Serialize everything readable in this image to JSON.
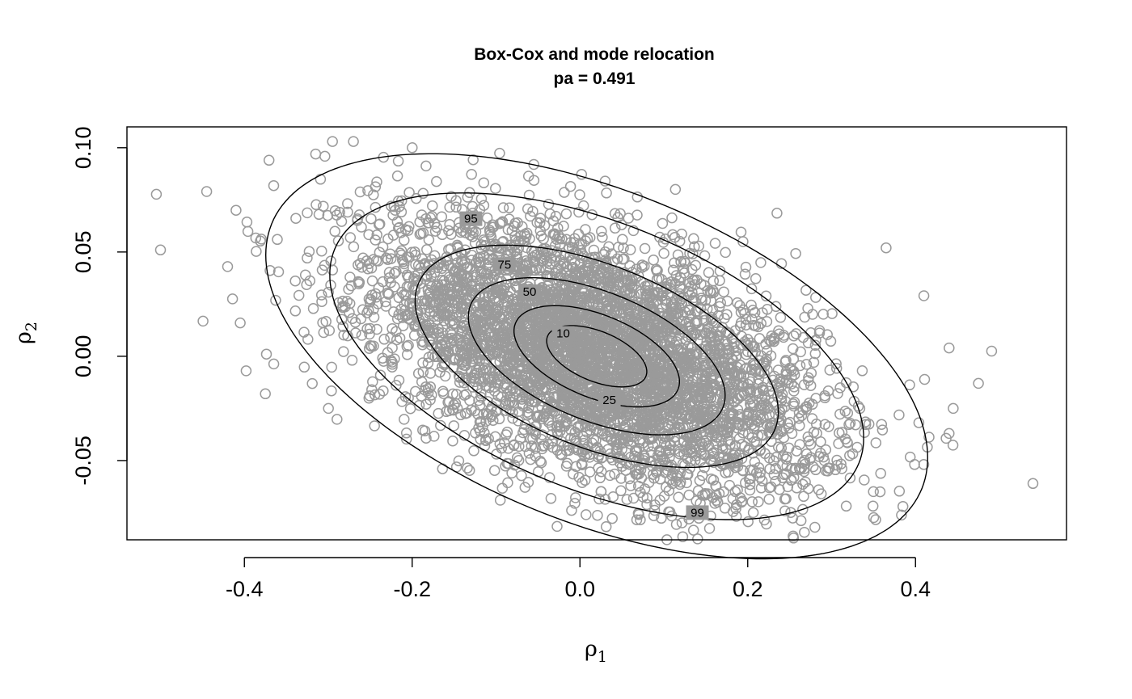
{
  "chart_data": {
    "type": "scatter",
    "title": "Box-Cox and mode relocation",
    "subtitle": "pa =  0.491",
    "xlabel": {
      "base": "ρ",
      "sub": "1"
    },
    "ylabel": {
      "base": "ρ",
      "sub": "2"
    },
    "xlim": [
      -0.54,
      0.58
    ],
    "ylim": [
      -0.088,
      0.11
    ],
    "x_ticks": [
      -0.4,
      -0.2,
      0.0,
      0.2,
      0.4
    ],
    "x_tick_labels": [
      "-0.4",
      "-0.2",
      "0.0",
      "0.2",
      "0.4"
    ],
    "y_ticks": [
      -0.05,
      0.0,
      0.05,
      0.1
    ],
    "y_tick_labels": [
      "-0.05",
      "0.00",
      "0.05",
      "0.10"
    ],
    "grid": false,
    "point_color": "#9a9a9a",
    "point_count": 5000,
    "distribution": {
      "center": [
        0.02,
        0.0
      ],
      "sd_rho1": 0.13,
      "sd_rho2": 0.032,
      "correlation": -0.5
    },
    "outliers": [
      {
        "x": -0.5,
        "y": 0.051
      },
      {
        "x": 0.54,
        "y": -0.061
      },
      {
        "x": 0.475,
        "y": -0.013
      },
      {
        "x": -0.445,
        "y": 0.079
      },
      {
        "x": -0.41,
        "y": 0.07
      },
      {
        "x": -0.375,
        "y": -0.018
      },
      {
        "x": -0.295,
        "y": 0.103
      },
      {
        "x": -0.27,
        "y": 0.103
      },
      {
        "x": -0.2,
        "y": 0.1
      },
      {
        "x": -0.315,
        "y": 0.097
      },
      {
        "x": -0.055,
        "y": 0.092
      },
      {
        "x": 0.03,
        "y": 0.084
      },
      {
        "x": 0.28,
        "y": -0.082
      },
      {
        "x": 0.13,
        "y": -0.078
      },
      {
        "x": 0.44,
        "y": -0.037
      },
      {
        "x": 0.385,
        "y": -0.072
      },
      {
        "x": -0.42,
        "y": 0.043
      },
      {
        "x": -0.405,
        "y": 0.016
      },
      {
        "x": 0.445,
        "y": -0.025
      },
      {
        "x": 0.44,
        "y": 0.004
      },
      {
        "x": -0.095,
        "y": -0.069
      },
      {
        "x": 0.365,
        "y": 0.052
      },
      {
        "x": 0.41,
        "y": 0.029
      }
    ],
    "contours": [
      {
        "level": "10",
        "label_at": [
          -0.02,
          0.011
        ]
      },
      {
        "level": "25",
        "label_at": [
          0.035,
          -0.021
        ]
      },
      {
        "level": "50",
        "label_at": [
          -0.06,
          0.031
        ]
      },
      {
        "level": "75",
        "label_at": [
          -0.09,
          0.044
        ]
      },
      {
        "level": "95",
        "label_at": [
          -0.13,
          0.066
        ]
      },
      {
        "level": "99",
        "label_at": [
          0.14,
          -0.075
        ]
      }
    ]
  }
}
